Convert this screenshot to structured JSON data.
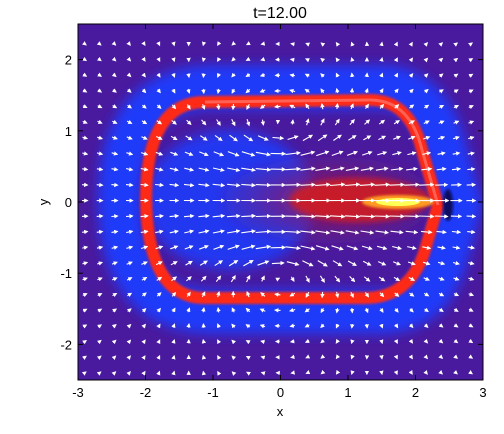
{
  "chart_data": {
    "type": "heatmap",
    "title": "t=12.00",
    "xlabel": "x",
    "ylabel": "y",
    "xlim": [
      -3,
      3
    ],
    "ylim": [
      -2.5,
      2.5
    ],
    "x_ticks": [
      -3,
      -2,
      -1,
      0,
      1,
      2,
      3
    ],
    "y_ticks": [
      -2,
      -1,
      0,
      1,
      2
    ],
    "x_tick_labels": [
      "-3",
      "-2",
      "-1",
      "0",
      "1",
      "2",
      "3"
    ],
    "y_tick_labels": [
      "-2",
      "-1",
      "0",
      "1",
      "2"
    ],
    "overlay": "velocity vector field (arrows)",
    "colors": {
      "background": "#4a1a9e",
      "low": "#1c3cff",
      "high": "#ff2a14",
      "peak": "#ffff55",
      "arrows": "#ffffff"
    }
  }
}
